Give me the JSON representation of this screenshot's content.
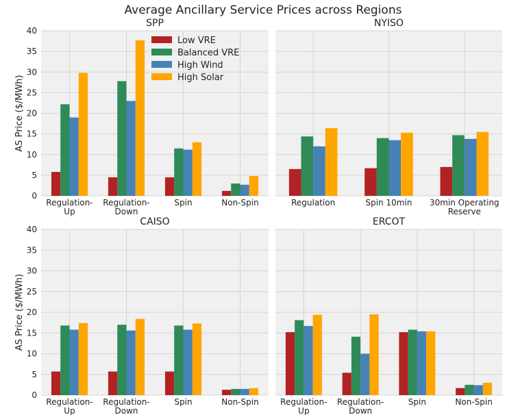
{
  "title": "Average Ancillary Service Prices across Regions",
  "chart_data": [
    {
      "type": "bar",
      "title": "SPP",
      "ylabel": "AS Price ($/MWh)",
      "legend": "upper center",
      "categories": [
        "Regulation-\nUp",
        "Regulation-\nDown",
        "Spin",
        "Non-Spin"
      ],
      "series": [
        {
          "name": "Low VRE",
          "color": "#b22222",
          "values": [
            5.8,
            4.5,
            4.5,
            1.2
          ]
        },
        {
          "name": "Balanced VRE",
          "color": "#2e8b57",
          "values": [
            22.2,
            27.8,
            11.5,
            3.0
          ]
        },
        {
          "name": "High Wind",
          "color": "#4682b4",
          "values": [
            19.0,
            23.0,
            11.2,
            2.7
          ]
        },
        {
          "name": "High Solar",
          "color": "#ffa500",
          "values": [
            29.8,
            37.7,
            13.0,
            4.8
          ]
        }
      ],
      "ylim": [
        0,
        40
      ],
      "yticks": [
        0,
        5,
        10,
        15,
        20,
        25,
        30,
        35,
        40
      ],
      "grid": true
    },
    {
      "type": "bar",
      "title": "NYISO",
      "ytick_labels": false,
      "categories": [
        "Regulation",
        "Spin 10min",
        "30min Operating\nReserve"
      ],
      "series": [
        {
          "name": "Low VRE",
          "color": "#b22222",
          "values": [
            6.5,
            6.7,
            7.0
          ]
        },
        {
          "name": "Balanced VRE",
          "color": "#2e8b57",
          "values": [
            14.4,
            14.0,
            14.7
          ]
        },
        {
          "name": "High Wind",
          "color": "#4682b4",
          "values": [
            12.0,
            13.5,
            13.8
          ]
        },
        {
          "name": "High Solar",
          "color": "#ffa500",
          "values": [
            16.4,
            15.3,
            15.5
          ]
        }
      ],
      "ylim": [
        0,
        40
      ],
      "yticks": [
        0,
        5,
        10,
        15,
        20,
        25,
        30,
        35,
        40
      ],
      "grid": true
    },
    {
      "type": "bar",
      "title": "CAISO",
      "ylabel": "AS Price ($/MWh)",
      "categories": [
        "Regulation-\nUp",
        "Regulation-\nDown",
        "Spin",
        "Non-Spin"
      ],
      "series": [
        {
          "name": "Low VRE",
          "color": "#b22222",
          "values": [
            5.7,
            5.7,
            5.7,
            1.3
          ]
        },
        {
          "name": "Balanced VRE",
          "color": "#2e8b57",
          "values": [
            16.8,
            17.0,
            16.8,
            1.5
          ]
        },
        {
          "name": "High Wind",
          "color": "#4682b4",
          "values": [
            15.8,
            15.6,
            15.8,
            1.5
          ]
        },
        {
          "name": "High Solar",
          "color": "#ffa500",
          "values": [
            17.4,
            18.4,
            17.3,
            1.7
          ]
        }
      ],
      "ylim": [
        0,
        40
      ],
      "yticks": [
        0,
        5,
        10,
        15,
        20,
        25,
        30,
        35,
        40
      ],
      "grid": true
    },
    {
      "type": "bar",
      "title": "ERCOT",
      "ytick_labels": false,
      "categories": [
        "Regulation-\nUp",
        "Regulation-\nDown",
        "Spin",
        "Non-Spin"
      ],
      "series": [
        {
          "name": "Low VRE",
          "color": "#b22222",
          "values": [
            15.2,
            5.4,
            15.2,
            1.7
          ]
        },
        {
          "name": "Balanced VRE",
          "color": "#2e8b57",
          "values": [
            18.1,
            14.1,
            15.8,
            2.5
          ]
        },
        {
          "name": "High Wind",
          "color": "#4682b4",
          "values": [
            16.7,
            10.0,
            15.4,
            2.4
          ]
        },
        {
          "name": "High Solar",
          "color": "#ffa500",
          "values": [
            19.4,
            19.5,
            15.4,
            3.0
          ]
        }
      ],
      "ylim": [
        0,
        40
      ],
      "yticks": [
        0,
        5,
        10,
        15,
        20,
        25,
        30,
        35,
        40
      ],
      "grid": true
    }
  ]
}
